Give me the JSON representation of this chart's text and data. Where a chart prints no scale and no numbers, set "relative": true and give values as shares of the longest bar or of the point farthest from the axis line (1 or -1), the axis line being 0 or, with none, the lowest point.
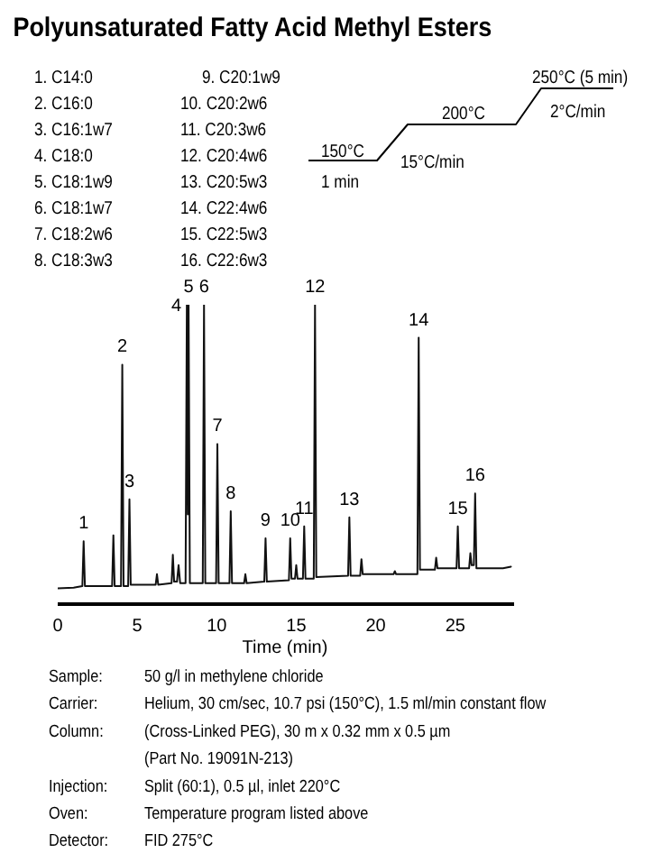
{
  "chart_data": {
    "type": "line",
    "title": "Polyunsaturated Fatty Acid Methyl Esters",
    "xlabel": "Time (min)",
    "relative": true,
    "color": "#111111",
    "xlim": [
      0,
      28.7
    ],
    "xticks": [
      0,
      5,
      10,
      15,
      20,
      25
    ],
    "x": [
      0.0,
      1.0,
      1.55,
      1.63,
      1.71,
      2.5,
      3.42,
      3.5,
      3.58,
      3.98,
      4.06,
      4.14,
      4.43,
      4.51,
      4.59,
      5.5,
      6.16,
      6.24,
      6.32,
      7.16,
      7.24,
      7.32,
      7.5,
      7.6,
      7.7,
      8.04,
      8.12,
      8.18,
      8.23,
      8.31,
      9.12,
      9.2,
      9.28,
      9.96,
      10.04,
      10.12,
      10.8,
      10.88,
      10.96,
      11.72,
      11.8,
      11.88,
      12.99,
      13.07,
      13.15,
      14.54,
      14.62,
      14.7,
      14.92,
      15.0,
      15.08,
      15.42,
      15.5,
      15.58,
      16.1,
      16.18,
      16.26,
      18.26,
      18.34,
      18.42,
      19.02,
      19.1,
      19.18,
      21.12,
      21.2,
      21.28,
      22.62,
      22.7,
      22.78,
      23.72,
      23.8,
      23.88,
      25.08,
      25.16,
      25.24,
      25.87,
      25.95,
      26.03,
      26.17,
      26.25,
      26.33,
      28.0,
      28.5
    ],
    "values": [
      0.053,
      0.055,
      0.06,
      0.21,
      0.06,
      0.06,
      0.06,
      0.23,
      0.06,
      0.06,
      0.8,
      0.06,
      0.06,
      0.35,
      0.065,
      0.065,
      0.065,
      0.1,
      0.065,
      0.07,
      0.165,
      0.075,
      0.075,
      0.13,
      0.07,
      0.07,
      1.0,
      0.3,
      1.0,
      0.07,
      0.07,
      1.0,
      0.07,
      0.07,
      0.535,
      0.07,
      0.07,
      0.31,
      0.07,
      0.07,
      0.1,
      0.07,
      0.075,
      0.22,
      0.075,
      0.08,
      0.22,
      0.085,
      0.085,
      0.13,
      0.085,
      0.085,
      0.26,
      0.085,
      0.085,
      1.0,
      0.09,
      0.095,
      0.29,
      0.095,
      0.095,
      0.15,
      0.1,
      0.1,
      0.11,
      0.1,
      0.1,
      0.89,
      0.115,
      0.115,
      0.155,
      0.12,
      0.12,
      0.26,
      0.12,
      0.12,
      0.17,
      0.13,
      0.13,
      0.37,
      0.12,
      0.12,
      0.125
    ],
    "annotations": [
      "1. C14:0",
      "2. C16:0",
      "3. C16:1w7",
      "4. C18:0",
      "5. C18:1w9",
      "6. C18:1w7",
      "7. C18:2w6",
      "8. C18:3w3",
      "9. C20:1w9",
      "10. C20:2w6",
      "11. C20:3w6",
      "12. C20:4w6",
      "13. C20:5w3",
      "14. C22:4w6",
      "15. C22:5w3",
      "16. C22:6w3",
      "250°C (5 min)",
      "200°C",
      "2°C/min",
      "150°C",
      "15°C/min",
      "1 min",
      "Sample:",
      "50 g/l in methylene chloride",
      "Carrier:",
      "Helium, 30 cm/sec, 10.7 psi (150°C), 1.5 ml/min constant flow",
      "Column:",
      "(Cross-Linked PEG), 30 m x 0.32 mm x 0.5 µm",
      "(Part No. 19091N-213)",
      "Injection:",
      "Split (60:1), 0.5 µl, inlet 220°C",
      "Oven:",
      "Temperature program listed above",
      "Detector:",
      "FID 275°C",
      {
        "text": "1",
        "x": 1.63,
        "y": 0.21
      },
      {
        "text": "2",
        "x": 4.06,
        "y": 0.8
      },
      {
        "text": "3",
        "x": 4.51,
        "y": 0.35
      },
      {
        "text": "4",
        "x": 8.12,
        "y": 1.0
      },
      {
        "text": "5",
        "x": 8.23,
        "y": 1.0
      },
      {
        "text": "6",
        "x": 9.2,
        "y": 1.0
      },
      {
        "text": "7",
        "x": 10.04,
        "y": 0.535
      },
      {
        "text": "8",
        "x": 10.88,
        "y": 0.31
      },
      {
        "text": "9",
        "x": 13.07,
        "y": 0.22
      },
      {
        "text": "10",
        "x": 14.62,
        "y": 0.22
      },
      {
        "text": "11",
        "x": 15.5,
        "y": 0.26
      },
      {
        "text": "12",
        "x": 16.18,
        "y": 1.0
      },
      {
        "text": "13",
        "x": 18.34,
        "y": 0.29
      },
      {
        "text": "14",
        "x": 22.7,
        "y": 0.89
      },
      {
        "text": "15",
        "x": 25.16,
        "y": 0.26
      },
      {
        "text": "16",
        "x": 26.25,
        "y": 0.37
      }
    ]
  }
}
